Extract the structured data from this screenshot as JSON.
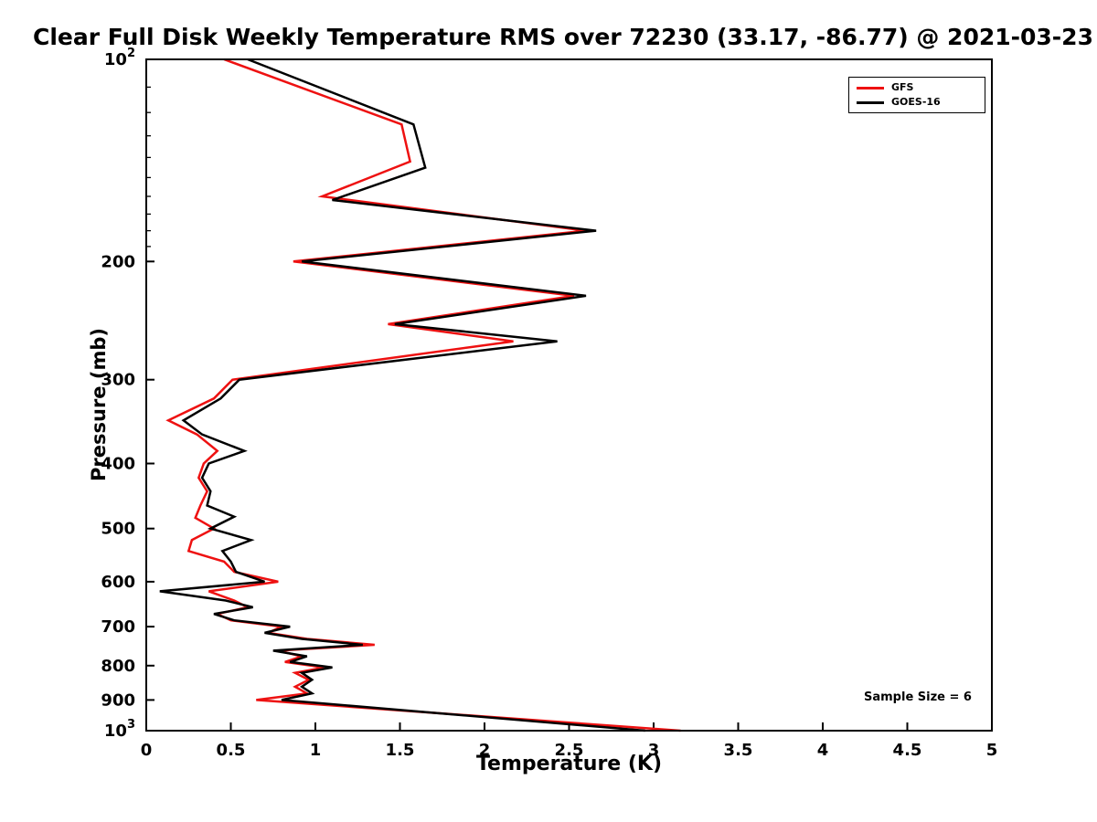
{
  "chart_data": {
    "type": "line",
    "title": "Clear Full Disk Weekly Temperature RMS over 72230 (33.17, -86.77) @ 2021-03-23",
    "xlabel": "Temperature (K)",
    "ylabel": "Pressure (mb)",
    "xlim": [
      0,
      5
    ],
    "ylim": [
      100,
      1000
    ],
    "yscale": "log",
    "y_inverted": true,
    "grid": false,
    "legend_position": "upper right",
    "xticks": [
      {
        "v": 0,
        "label": "0"
      },
      {
        "v": 0.5,
        "label": "0.5"
      },
      {
        "v": 1,
        "label": "1"
      },
      {
        "v": 1.5,
        "label": "1.5"
      },
      {
        "v": 2,
        "label": "2"
      },
      {
        "v": 2.5,
        "label": "2.5"
      },
      {
        "v": 3,
        "label": "3"
      },
      {
        "v": 3.5,
        "label": "3.5"
      },
      {
        "v": 4,
        "label": "4"
      },
      {
        "v": 4.5,
        "label": "4.5"
      },
      {
        "v": 5,
        "label": "5"
      }
    ],
    "yticks": [
      {
        "p": 100,
        "label": "10^2"
      },
      {
        "p": 200,
        "label": "200"
      },
      {
        "p": 300,
        "label": "300"
      },
      {
        "p": 400,
        "label": "400"
      },
      {
        "p": 500,
        "label": "500"
      },
      {
        "p": 600,
        "label": "600"
      },
      {
        "p": 700,
        "label": "700"
      },
      {
        "p": 800,
        "label": "800"
      },
      {
        "p": 900,
        "label": "900"
      },
      {
        "p": 1000,
        "label": "10^3"
      }
    ],
    "y_minor_ticks": [
      110,
      120,
      130,
      140,
      150,
      160,
      170,
      180,
      190
    ],
    "series": [
      {
        "name": "GFS",
        "color": "#ee1111",
        "points": [
          [
            100,
            0.46
          ],
          [
            125,
            1.51
          ],
          [
            142,
            1.56
          ],
          [
            160,
            1.04
          ],
          [
            180,
            2.6
          ],
          [
            200,
            0.87
          ],
          [
            225,
            2.53
          ],
          [
            248,
            1.43
          ],
          [
            263,
            2.17
          ],
          [
            300,
            0.51
          ],
          [
            320,
            0.4
          ],
          [
            345,
            0.13
          ],
          [
            362,
            0.3
          ],
          [
            383,
            0.42
          ],
          [
            400,
            0.34
          ],
          [
            420,
            0.31
          ],
          [
            440,
            0.36
          ],
          [
            462,
            0.32
          ],
          [
            482,
            0.29
          ],
          [
            500,
            0.4
          ],
          [
            520,
            0.27
          ],
          [
            540,
            0.25
          ],
          [
            560,
            0.46
          ],
          [
            580,
            0.52
          ],
          [
            600,
            0.78
          ],
          [
            620,
            0.37
          ],
          [
            640,
            0.52
          ],
          [
            655,
            0.6
          ],
          [
            670,
            0.42
          ],
          [
            685,
            0.5
          ],
          [
            700,
            0.8
          ],
          [
            715,
            0.72
          ],
          [
            730,
            0.95
          ],
          [
            745,
            1.35
          ],
          [
            760,
            0.78
          ],
          [
            775,
            0.92
          ],
          [
            790,
            0.82
          ],
          [
            805,
            1.05
          ],
          [
            820,
            0.88
          ],
          [
            840,
            0.96
          ],
          [
            860,
            0.88
          ],
          [
            880,
            0.95
          ],
          [
            900,
            0.65
          ],
          [
            1000,
            3.16
          ]
        ]
      },
      {
        "name": "GOES-16",
        "color": "#000000",
        "points": [
          [
            100,
            0.6
          ],
          [
            125,
            1.58
          ],
          [
            145,
            1.65
          ],
          [
            162,
            1.1
          ],
          [
            180,
            2.66
          ],
          [
            200,
            0.92
          ],
          [
            225,
            2.6
          ],
          [
            248,
            1.47
          ],
          [
            263,
            2.43
          ],
          [
            300,
            0.55
          ],
          [
            320,
            0.44
          ],
          [
            345,
            0.22
          ],
          [
            362,
            0.33
          ],
          [
            383,
            0.58
          ],
          [
            400,
            0.37
          ],
          [
            420,
            0.33
          ],
          [
            440,
            0.38
          ],
          [
            462,
            0.36
          ],
          [
            480,
            0.52
          ],
          [
            500,
            0.38
          ],
          [
            520,
            0.62
          ],
          [
            540,
            0.45
          ],
          [
            560,
            0.5
          ],
          [
            580,
            0.53
          ],
          [
            600,
            0.7
          ],
          [
            620,
            0.08
          ],
          [
            640,
            0.47
          ],
          [
            655,
            0.63
          ],
          [
            670,
            0.4
          ],
          [
            685,
            0.52
          ],
          [
            700,
            0.85
          ],
          [
            715,
            0.7
          ],
          [
            730,
            0.92
          ],
          [
            745,
            1.28
          ],
          [
            760,
            0.75
          ],
          [
            775,
            0.95
          ],
          [
            790,
            0.85
          ],
          [
            805,
            1.1
          ],
          [
            820,
            0.92
          ],
          [
            840,
            0.98
          ],
          [
            860,
            0.92
          ],
          [
            880,
            0.98
          ],
          [
            900,
            0.8
          ],
          [
            1000,
            2.95
          ]
        ]
      }
    ],
    "annotations": [
      {
        "text": "Sample Size = 6",
        "x": 4.25,
        "y": 905
      }
    ]
  }
}
